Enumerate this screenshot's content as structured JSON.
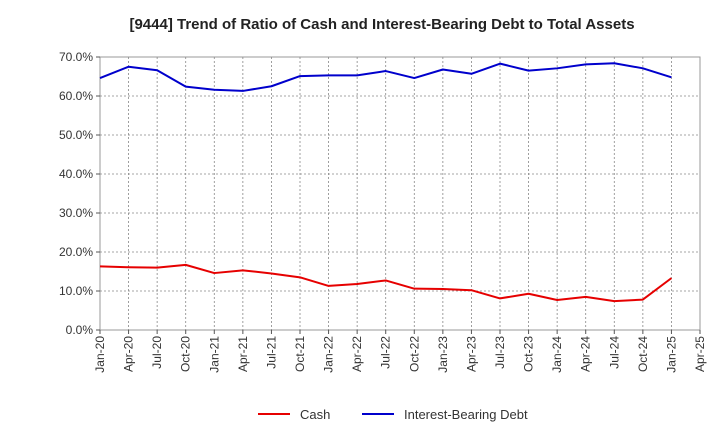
{
  "chart_data": {
    "type": "line",
    "title": "[9444]  Trend of Ratio of Cash and Interest-Bearing Debt to Total Assets",
    "xlabel": "",
    "ylabel": "",
    "ylim": [
      0,
      70
    ],
    "y_ticks": [
      "0.0%",
      "10.0%",
      "20.0%",
      "30.0%",
      "40.0%",
      "50.0%",
      "60.0%",
      "70.0%"
    ],
    "x_ticks": [
      "Jan-20",
      "Apr-20",
      "Jul-20",
      "Oct-20",
      "Jan-21",
      "Apr-21",
      "Jul-21",
      "Oct-21",
      "Jan-22",
      "Apr-22",
      "Jul-22",
      "Oct-22",
      "Jan-23",
      "Apr-23",
      "Jul-23",
      "Oct-23",
      "Jan-24",
      "Apr-24",
      "Jul-24",
      "Oct-24",
      "Jan-25",
      "Apr-25"
    ],
    "x": [
      "Jan-20",
      "Apr-20",
      "Jul-20",
      "Oct-20",
      "Jan-21",
      "Apr-21",
      "Jul-21",
      "Oct-21",
      "Jan-22",
      "Apr-22",
      "Jul-22",
      "Oct-22",
      "Jan-23",
      "Apr-23",
      "Jul-23",
      "Oct-23",
      "Jan-24",
      "Apr-24",
      "Jul-24",
      "Oct-24",
      "Jan-25"
    ],
    "grid": true,
    "legend_position": "bottom",
    "series": [
      {
        "name": "Cash",
        "color": "#e60000",
        "values": [
          16.3,
          16.1,
          16.0,
          16.7,
          14.6,
          15.3,
          14.5,
          13.5,
          11.3,
          11.8,
          12.7,
          10.6,
          10.5,
          10.2,
          8.1,
          9.3,
          7.7,
          8.5,
          7.4,
          7.8,
          13.3
        ]
      },
      {
        "name": "Interest-Bearing Debt",
        "color": "#0000cc",
        "values": [
          64.6,
          67.5,
          66.6,
          62.4,
          61.6,
          61.3,
          62.5,
          65.1,
          65.3,
          65.3,
          66.4,
          64.6,
          66.8,
          65.7,
          68.3,
          66.5,
          67.1,
          68.1,
          68.4,
          67.1,
          64.8
        ]
      }
    ]
  }
}
